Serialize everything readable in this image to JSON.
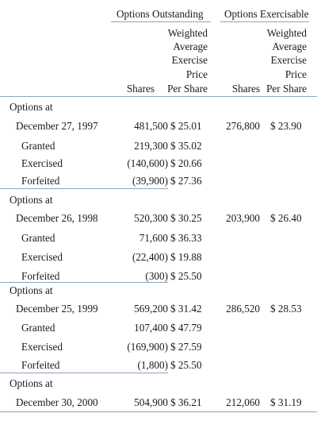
{
  "headers": {
    "outstanding": "Options Outstanding",
    "exercisable": "Options Exercisable",
    "col_shares": "Shares",
    "col_price": [
      "Weighted",
      "Average",
      "Exercise",
      "Price",
      "Per Share"
    ],
    "ex_shares": "Shares",
    "ex_price": [
      "Weighted",
      "Average",
      "Exercise",
      "Price",
      "Per Share"
    ]
  },
  "sections": [
    {
      "title": "Options at",
      "rows": [
        {
          "label": "December 27, 1997",
          "shares": "481,500",
          "price": "$ 25.01",
          "ex_shares": "276,800",
          "ex_price": "$ 23.90"
        },
        {
          "label": "Granted",
          "shares": "219,300",
          "price": "$ 35.02",
          "ex_shares": "",
          "ex_price": ""
        },
        {
          "label": "Exercised",
          "shares": "(140,600)",
          "price": "$ 20.66",
          "ex_shares": "",
          "ex_price": ""
        },
        {
          "label": "Forfeited",
          "shares": "(39,900)",
          "price": "$ 27.36",
          "ex_shares": "",
          "ex_price": ""
        }
      ]
    },
    {
      "title": "Options at",
      "rows": [
        {
          "label": "December 26, 1998",
          "shares": "520,300",
          "price": "$ 30.25",
          "ex_shares": "203,900",
          "ex_price": "$ 26.40"
        },
        {
          "label": "Granted",
          "shares": "71,600",
          "price": "$ 36.33",
          "ex_shares": "",
          "ex_price": ""
        },
        {
          "label": "Exercised",
          "shares": "(22,400)",
          "price": "$ 19.88",
          "ex_shares": "",
          "ex_price": ""
        },
        {
          "label": "Forfeited",
          "shares": "(300)",
          "price": "$ 25.50",
          "ex_shares": "",
          "ex_price": ""
        }
      ]
    },
    {
      "title": "Options at",
      "rows": [
        {
          "label": "December 25, 1999",
          "shares": "569,200",
          "price": "$ 31.42",
          "ex_shares": "286,520",
          "ex_price": "$ 28.53"
        },
        {
          "label": "Granted",
          "shares": "107,400",
          "price": "$ 47.79",
          "ex_shares": "",
          "ex_price": ""
        },
        {
          "label": "Exercised",
          "shares": "(169,900)",
          "price": "$ 27.59",
          "ex_shares": "",
          "ex_price": ""
        },
        {
          "label": "Forfeited",
          "shares": "(1,800)",
          "price": "$ 25.50",
          "ex_shares": "",
          "ex_price": ""
        }
      ]
    },
    {
      "title": "Options at",
      "rows": [
        {
          "label": "December 30, 2000",
          "shares": "504,900",
          "price": "$ 36.21",
          "ex_shares": "212,060",
          "ex_price": "$ 31.19"
        }
      ]
    }
  ]
}
